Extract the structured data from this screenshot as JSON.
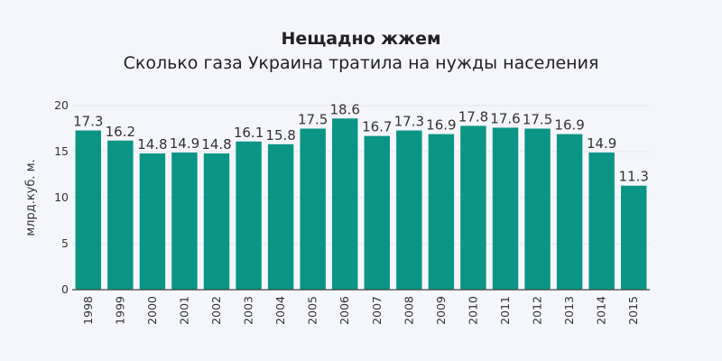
{
  "chart_data": {
    "type": "bar",
    "title": "Нещадно жжем",
    "subtitle": "Сколько газа Украина тратила на нужды населения",
    "ylabel": "млрд.куб. м.",
    "xlabel": "",
    "categories": [
      "1998",
      "1999",
      "2000",
      "2001",
      "2002",
      "2003",
      "2004",
      "2005",
      "2006",
      "2007",
      "2008",
      "2009",
      "2010",
      "2011",
      "2012",
      "2013",
      "2014",
      "2015"
    ],
    "values": [
      17.3,
      16.2,
      14.8,
      14.9,
      14.8,
      16.1,
      15.8,
      17.5,
      18.6,
      16.7,
      17.3,
      16.9,
      17.8,
      17.6,
      17.5,
      16.9,
      14.9,
      11.3
    ],
    "value_labels": [
      "17.3",
      "16.2",
      "14.8",
      "14.9",
      "14.8",
      "16.1",
      "15.8",
      "17.5",
      "18.6",
      "16.7",
      "17.3",
      "16.9",
      "17.8",
      "17.6",
      "17.5",
      "16.9",
      "14.9",
      "11.3"
    ],
    "ylim": [
      0,
      20
    ],
    "yticks": [
      "0",
      "5",
      "10",
      "15",
      "20"
    ],
    "ytick_values": [
      0,
      5,
      10,
      15,
      20
    ],
    "bar_color": "#0a9585",
    "grid": true,
    "legend": "none"
  }
}
